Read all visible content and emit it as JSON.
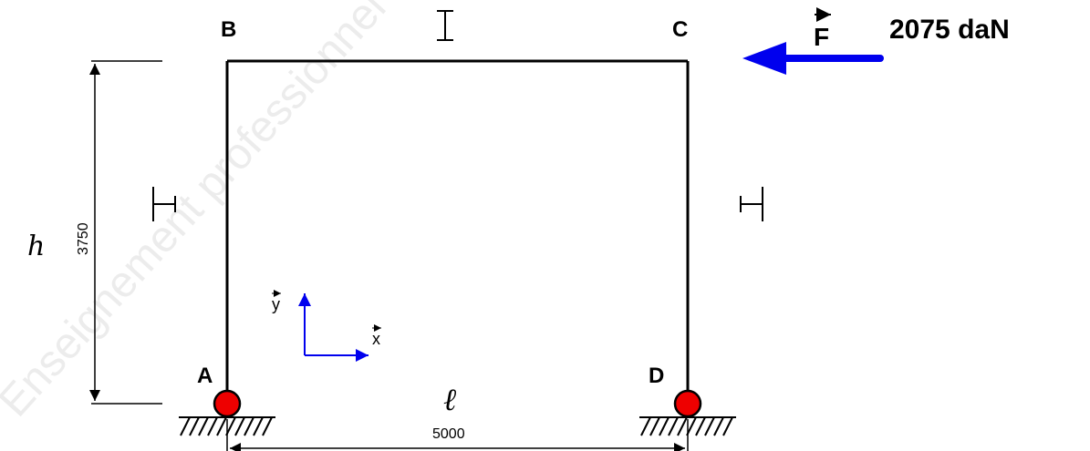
{
  "watermark": "Enseignement professionnel",
  "nodes": {
    "A": "A",
    "B": "B",
    "C": "C",
    "D": "D"
  },
  "force": {
    "symbol": "F",
    "value": "2075 daN",
    "color": "#0000ee"
  },
  "dimensions": {
    "height_symbol": "h",
    "height_value": "3750",
    "length_symbol": "ℓ",
    "length_value": "5000"
  },
  "axes": {
    "x": "x",
    "y": "y",
    "color": "#0000ee"
  },
  "support_color": "#ee0000"
}
